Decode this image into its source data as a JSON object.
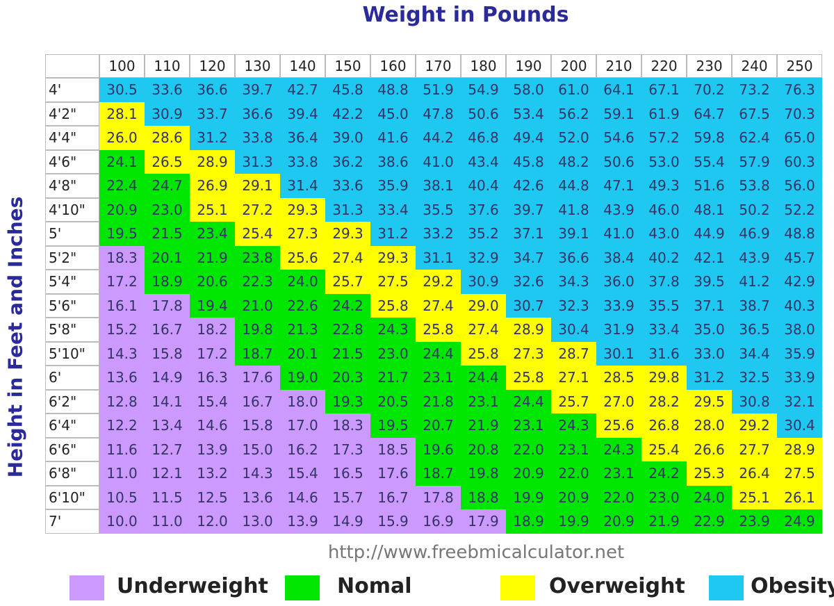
{
  "title": "Weight in Pounds",
  "y_axis_label": "Height in Feet and Inches",
  "columns": [
    100,
    110,
    120,
    130,
    140,
    150,
    160,
    170,
    180,
    190,
    200,
    210,
    220,
    230,
    240,
    250
  ],
  "rows": [
    {
      "label": "4'",
      "values": [
        "30.5",
        "33.6",
        "36.6",
        "39.7",
        "42.7",
        "45.8",
        "48.8",
        "51.9",
        "54.9",
        "58.0",
        "61.0",
        "64.1",
        "67.1",
        "70.2",
        "73.2",
        "76.3"
      ],
      "classes": [
        3,
        3,
        3,
        3,
        3,
        3,
        3,
        3,
        3,
        3,
        3,
        3,
        3,
        3,
        3,
        3
      ]
    },
    {
      "label": "4'2\"",
      "values": [
        "28.1",
        "30.9",
        "33.7",
        "36.6",
        "39.4",
        "42.2",
        "45.0",
        "47.8",
        "50.6",
        "53.4",
        "56.2",
        "59.1",
        "61.9",
        "64.7",
        "67.5",
        "70.3"
      ],
      "classes": [
        2,
        3,
        3,
        3,
        3,
        3,
        3,
        3,
        3,
        3,
        3,
        3,
        3,
        3,
        3,
        3
      ]
    },
    {
      "label": "4'4\"",
      "values": [
        "26.0",
        "28.6",
        "31.2",
        "33.8",
        "36.4",
        "39.0",
        "41.6",
        "44.2",
        "46.8",
        "49.4",
        "52.0",
        "54.6",
        "57.2",
        "59.8",
        "62.4",
        "65.0"
      ],
      "classes": [
        2,
        2,
        3,
        3,
        3,
        3,
        3,
        3,
        3,
        3,
        3,
        3,
        3,
        3,
        3,
        3
      ]
    },
    {
      "label": "4'6\"",
      "values": [
        "24.1",
        "26.5",
        "28.9",
        "31.3",
        "33.8",
        "36.2",
        "38.6",
        "41.0",
        "43.4",
        "45.8",
        "48.2",
        "50.6",
        "53.0",
        "55.4",
        "57.9",
        "60.3"
      ],
      "classes": [
        1,
        2,
        2,
        3,
        3,
        3,
        3,
        3,
        3,
        3,
        3,
        3,
        3,
        3,
        3,
        3
      ]
    },
    {
      "label": "4'8\"",
      "values": [
        "22.4",
        "24.7",
        "26.9",
        "29.1",
        "31.4",
        "33.6",
        "35.9",
        "38.1",
        "40.4",
        "42.6",
        "44.8",
        "47.1",
        "49.3",
        "51.6",
        "53.8",
        "56.0"
      ],
      "classes": [
        1,
        1,
        2,
        2,
        3,
        3,
        3,
        3,
        3,
        3,
        3,
        3,
        3,
        3,
        3,
        3
      ]
    },
    {
      "label": "4'10\"",
      "values": [
        "20.9",
        "23.0",
        "25.1",
        "27.2",
        "29.3",
        "31.3",
        "33.4",
        "35.5",
        "37.6",
        "39.7",
        "41.8",
        "43.9",
        "46.0",
        "48.1",
        "50.2",
        "52.2"
      ],
      "classes": [
        1,
        1,
        2,
        2,
        2,
        3,
        3,
        3,
        3,
        3,
        3,
        3,
        3,
        3,
        3,
        3
      ]
    },
    {
      "label": "5'",
      "values": [
        "19.5",
        "21.5",
        "23.4",
        "25.4",
        "27.3",
        "29.3",
        "31.2",
        "33.2",
        "35.2",
        "37.1",
        "39.1",
        "41.0",
        "43.0",
        "44.9",
        "46.9",
        "48.8"
      ],
      "classes": [
        1,
        1,
        1,
        2,
        2,
        2,
        3,
        3,
        3,
        3,
        3,
        3,
        3,
        3,
        3,
        3
      ]
    },
    {
      "label": "5'2\"",
      "values": [
        "18.3",
        "20.1",
        "21.9",
        "23.8",
        "25.6",
        "27.4",
        "29.3",
        "31.1",
        "32.9",
        "34.7",
        "36.6",
        "38.4",
        "40.2",
        "42.1",
        "43.9",
        "45.7"
      ],
      "classes": [
        0,
        1,
        1,
        1,
        2,
        2,
        2,
        3,
        3,
        3,
        3,
        3,
        3,
        3,
        3,
        3
      ]
    },
    {
      "label": "5'4\"",
      "values": [
        "17.2",
        "18.9",
        "20.6",
        "22.3",
        "24.0",
        "25.7",
        "27.5",
        "29.2",
        "30.9",
        "32.6",
        "34.3",
        "36.0",
        "37.8",
        "39.5",
        "41.2",
        "42.9"
      ],
      "classes": [
        0,
        1,
        1,
        1,
        1,
        2,
        2,
        2,
        3,
        3,
        3,
        3,
        3,
        3,
        3,
        3
      ]
    },
    {
      "label": "5'6\"",
      "values": [
        "16.1",
        "17.8",
        "19.4",
        "21.0",
        "22.6",
        "24.2",
        "25.8",
        "27.4",
        "29.0",
        "30.7",
        "32.3",
        "33.9",
        "35.5",
        "37.1",
        "38.7",
        "40.3"
      ],
      "classes": [
        0,
        0,
        1,
        1,
        1,
        1,
        2,
        2,
        2,
        3,
        3,
        3,
        3,
        3,
        3,
        3
      ]
    },
    {
      "label": "5'8\"",
      "values": [
        "15.2",
        "16.7",
        "18.2",
        "19.8",
        "21.3",
        "22.8",
        "24.3",
        "25.8",
        "27.4",
        "28.9",
        "30.4",
        "31.9",
        "33.4",
        "35.0",
        "36.5",
        "38.0"
      ],
      "classes": [
        0,
        0,
        0,
        1,
        1,
        1,
        1,
        2,
        2,
        2,
        3,
        3,
        3,
        3,
        3,
        3
      ]
    },
    {
      "label": "5'10\"",
      "values": [
        "14.3",
        "15.8",
        "17.2",
        "18.7",
        "20.1",
        "21.5",
        "23.0",
        "24.4",
        "25.8",
        "27.3",
        "28.7",
        "30.1",
        "31.6",
        "33.0",
        "34.4",
        "35.9"
      ],
      "classes": [
        0,
        0,
        0,
        1,
        1,
        1,
        1,
        1,
        2,
        2,
        2,
        3,
        3,
        3,
        3,
        3
      ]
    },
    {
      "label": "6'",
      "values": [
        "13.6",
        "14.9",
        "16.3",
        "17.6",
        "19.0",
        "20.3",
        "21.7",
        "23.1",
        "24.4",
        "25.8",
        "27.1",
        "28.5",
        "29.8",
        "31.2",
        "32.5",
        "33.9"
      ],
      "classes": [
        0,
        0,
        0,
        0,
        1,
        1,
        1,
        1,
        1,
        2,
        2,
        2,
        2,
        3,
        3,
        3
      ]
    },
    {
      "label": "6'2\"",
      "values": [
        "12.8",
        "14.1",
        "15.4",
        "16.7",
        "18.0",
        "19.3",
        "20.5",
        "21.8",
        "23.1",
        "24.4",
        "25.7",
        "27.0",
        "28.2",
        "29.5",
        "30.8",
        "32.1"
      ],
      "classes": [
        0,
        0,
        0,
        0,
        0,
        1,
        1,
        1,
        1,
        1,
        2,
        2,
        2,
        2,
        3,
        3
      ]
    },
    {
      "label": "6'4\"",
      "values": [
        "12.2",
        "13.4",
        "14.6",
        "15.8",
        "17.0",
        "18.3",
        "19.5",
        "20.7",
        "21.9",
        "23.1",
        "24.3",
        "25.6",
        "26.8",
        "28.0",
        "29.2",
        "30.4"
      ],
      "classes": [
        0,
        0,
        0,
        0,
        0,
        0,
        1,
        1,
        1,
        1,
        1,
        2,
        2,
        2,
        2,
        3
      ]
    },
    {
      "label": "6'6\"",
      "values": [
        "11.6",
        "12.7",
        "13.9",
        "15.0",
        "16.2",
        "17.3",
        "18.5",
        "19.6",
        "20.8",
        "22.0",
        "23.1",
        "24.3",
        "25.4",
        "26.6",
        "27.7",
        "28.9"
      ],
      "classes": [
        0,
        0,
        0,
        0,
        0,
        0,
        0,
        1,
        1,
        1,
        1,
        1,
        2,
        2,
        2,
        2
      ]
    },
    {
      "label": "6'8\"",
      "values": [
        "11.0",
        "12.1",
        "13.2",
        "14.3",
        "15.4",
        "16.5",
        "17.6",
        "18.7",
        "19.8",
        "20.9",
        "22.0",
        "23.1",
        "24.2",
        "25.3",
        "26.4",
        "27.5"
      ],
      "classes": [
        0,
        0,
        0,
        0,
        0,
        0,
        0,
        1,
        1,
        1,
        1,
        1,
        1,
        2,
        2,
        2
      ]
    },
    {
      "label": "6'10\"",
      "values": [
        "10.5",
        "11.5",
        "12.5",
        "13.6",
        "14.6",
        "15.7",
        "16.7",
        "17.8",
        "18.8",
        "19.9",
        "20.9",
        "22.0",
        "23.0",
        "24.0",
        "25.1",
        "26.1"
      ],
      "classes": [
        0,
        0,
        0,
        0,
        0,
        0,
        0,
        0,
        1,
        1,
        1,
        1,
        1,
        1,
        2,
        2
      ]
    },
    {
      "label": "7'",
      "values": [
        "10.0",
        "11.0",
        "12.0",
        "13.0",
        "13.9",
        "14.9",
        "15.9",
        "16.9",
        "17.9",
        "18.9",
        "19.9",
        "20.9",
        "21.9",
        "22.9",
        "23.9",
        "24.9"
      ],
      "classes": [
        0,
        0,
        0,
        0,
        0,
        0,
        0,
        0,
        0,
        1,
        1,
        1,
        1,
        1,
        1,
        1
      ]
    }
  ],
  "source": "http://www.freebmicalculator.net",
  "legend": [
    {
      "label": "Underweight",
      "color": "#cc99ff"
    },
    {
      "label": "Nomal",
      "color": "#00e600"
    },
    {
      "label": "Overweight",
      "color": "#ffff00"
    },
    {
      "label": "Obesity",
      "color": "#1ec8f0"
    }
  ]
}
